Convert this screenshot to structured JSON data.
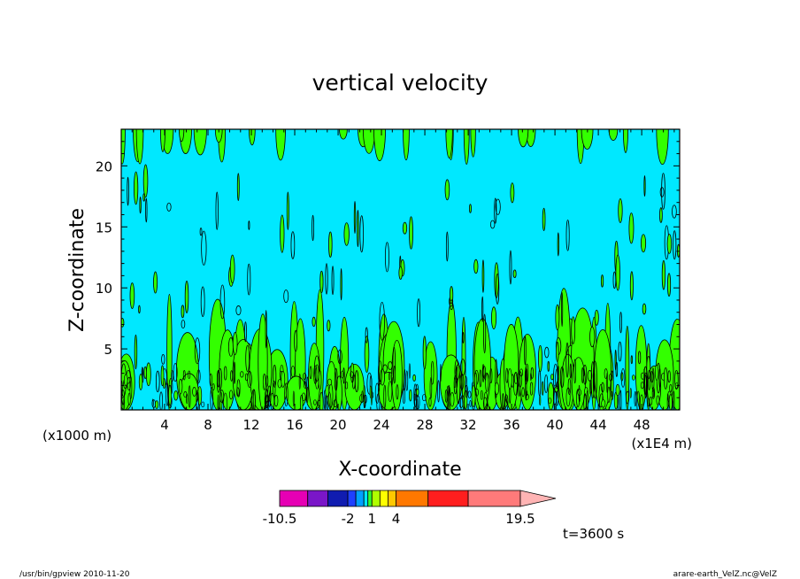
{
  "chart_data": {
    "type": "heatmap",
    "title": "vertical velocity",
    "xlabel": "X-coordinate",
    "ylabel": "Z-coordinate",
    "x_unit_left": "(x1000 m)",
    "x_unit_right": "(x1E4 m)",
    "xlim": [
      0,
      51.5
    ],
    "ylim": [
      0,
      23
    ],
    "x_ticks": [
      "4",
      "8",
      "12",
      "16",
      "20",
      "24",
      "28",
      "32",
      "36",
      "40",
      "44",
      "48"
    ],
    "x_tick_values": [
      4,
      8,
      12,
      16,
      20,
      24,
      28,
      32,
      36,
      40,
      44,
      48
    ],
    "y_ticks": [
      "5",
      "10",
      "15",
      "20"
    ],
    "y_tick_values": [
      5,
      10,
      15,
      20
    ],
    "grid": false,
    "background_level_color": "#00e8ff",
    "updraft_level_color": "#33ff00",
    "contour_line_color": "#000000",
    "colorbar": {
      "min_label": "-10.5",
      "max_label": "19.5",
      "labels": [
        {
          "text": "-10.5",
          "value": -10.5
        },
        {
          "text": "-2",
          "value": -2
        },
        {
          "text": "1",
          "value": 1
        },
        {
          "text": "4",
          "value": 4
        },
        {
          "text": "19.5",
          "value": 19.5
        }
      ],
      "levels": [
        -10.5,
        -7,
        -4.5,
        -2,
        -1,
        0,
        0.5,
        1,
        2,
        3,
        4,
        8,
        13,
        19.5
      ],
      "colors": [
        "#e600b4",
        "#7a16c8",
        "#101cb0",
        "#1e40ff",
        "#00a0ff",
        "#00e8ff",
        "#30ff30",
        "#b0ff00",
        "#ffff00",
        "#ffc800",
        "#ff7800",
        "#ff1e1e",
        "#ff7a7a",
        "#ffb4b4"
      ]
    },
    "time_label": "t=3600 s"
  },
  "footer": {
    "left": "/usr/bin/gpview   2010-11-20",
    "right": "arare-earth_VelZ.nc@VelZ"
  }
}
